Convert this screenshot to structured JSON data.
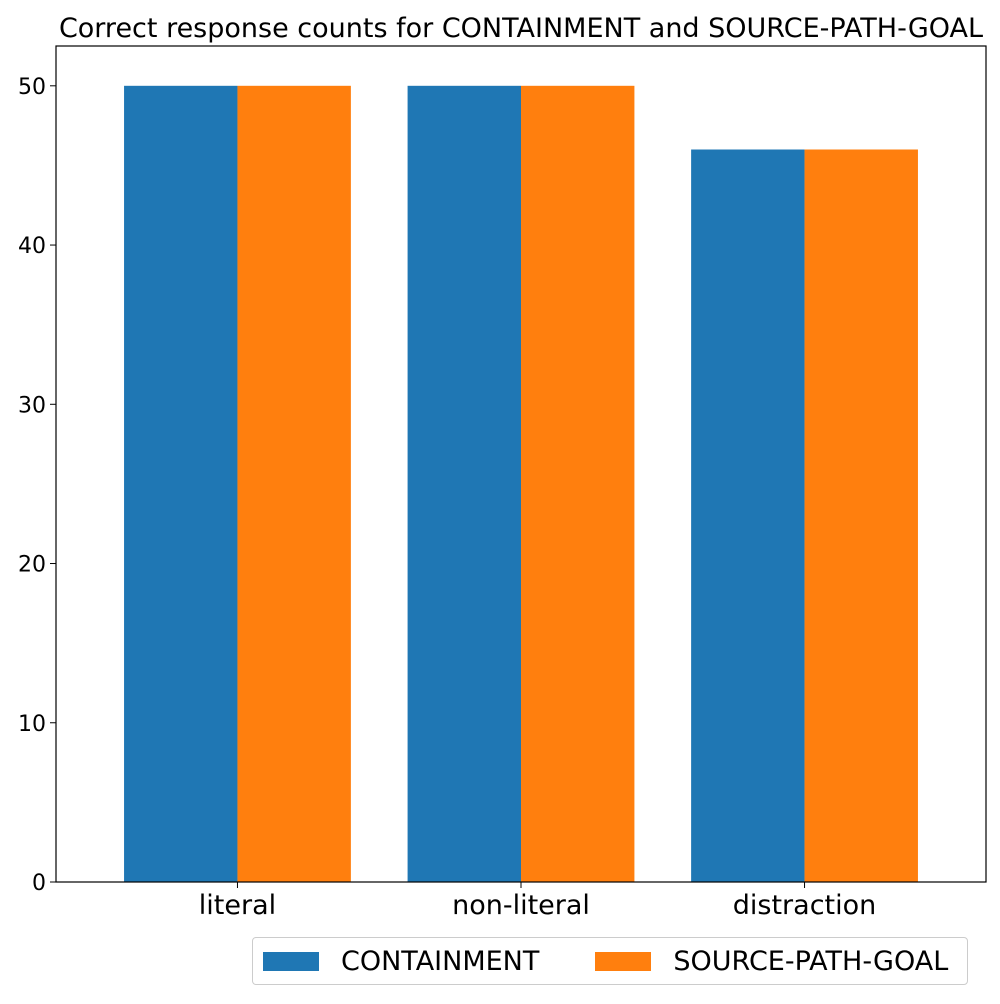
{
  "chart_data": {
    "type": "bar",
    "title": "Correct response counts for CONTAINMENT and SOURCE-PATH-GOAL",
    "xlabel": "",
    "ylabel": "",
    "categories": [
      "literal",
      "non-literal",
      "distraction"
    ],
    "series": [
      {
        "name": "CONTAINMENT",
        "values": [
          50,
          50,
          46
        ],
        "color": "#1f77b4"
      },
      {
        "name": "SOURCE-PATH-GOAL",
        "values": [
          50,
          50,
          46
        ],
        "color": "#ff7f0e"
      }
    ],
    "ylim": [
      0,
      52.5
    ],
    "yticks": [
      0,
      10,
      20,
      30,
      40,
      50
    ],
    "grid": false,
    "legend_position": "bottom-right"
  }
}
